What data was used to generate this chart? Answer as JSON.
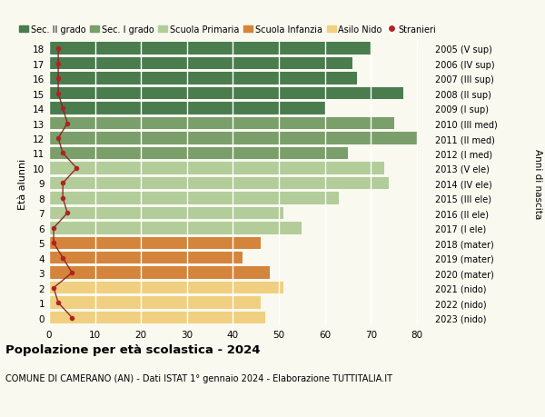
{
  "ages": [
    18,
    17,
    16,
    15,
    14,
    13,
    12,
    11,
    10,
    9,
    8,
    7,
    6,
    5,
    4,
    3,
    2,
    1,
    0
  ],
  "bar_values": [
    70,
    66,
    67,
    77,
    60,
    75,
    80,
    65,
    73,
    74,
    63,
    51,
    55,
    46,
    42,
    48,
    51,
    46,
    47
  ],
  "stranieri": [
    2,
    2,
    2,
    2,
    3,
    4,
    2,
    3,
    6,
    3,
    3,
    4,
    1,
    1,
    3,
    5,
    1,
    2,
    5
  ],
  "right_labels": [
    "2005 (V sup)",
    "2006 (IV sup)",
    "2007 (III sup)",
    "2008 (II sup)",
    "2009 (I sup)",
    "2010 (III med)",
    "2011 (II med)",
    "2012 (I med)",
    "2013 (V ele)",
    "2014 (IV ele)",
    "2015 (III ele)",
    "2016 (II ele)",
    "2017 (I ele)",
    "2018 (mater)",
    "2019 (mater)",
    "2020 (mater)",
    "2021 (nido)",
    "2022 (nido)",
    "2023 (nido)"
  ],
  "bar_colors": [
    "#4a7c4e",
    "#4a7c4e",
    "#4a7c4e",
    "#4a7c4e",
    "#4a7c4e",
    "#7a9f6a",
    "#7a9f6a",
    "#7a9f6a",
    "#b2cc9a",
    "#b2cc9a",
    "#b2cc9a",
    "#b2cc9a",
    "#b2cc9a",
    "#d4853b",
    "#d4853b",
    "#d4853b",
    "#f0d080",
    "#f0d080",
    "#f0d080"
  ],
  "legend_labels": [
    "Sec. II grado",
    "Sec. I grado",
    "Scuola Primaria",
    "Scuola Infanzia",
    "Asilo Nido",
    "Stranieri"
  ],
  "legend_colors": [
    "#4a7c4e",
    "#7a9f6a",
    "#b2cc9a",
    "#d4853b",
    "#f0d080",
    "#b22222"
  ],
  "title": "Popolazione per età scolastica - 2024",
  "subtitle": "COMUNE DI CAMERANO (AN) - Dati ISTAT 1° gennaio 2024 - Elaborazione TUTTITALIA.IT",
  "ylabel": "Età alunni",
  "right_ylabel": "Anni di nascita",
  "stranieri_color": "#b22222",
  "stranieri_line_color": "#8b1a1a",
  "background_color": "#f9f9f0",
  "grid_color": "#ffffff",
  "xlim": [
    0,
    83
  ],
  "xticks": [
    0,
    10,
    20,
    30,
    40,
    50,
    60,
    70,
    80
  ]
}
